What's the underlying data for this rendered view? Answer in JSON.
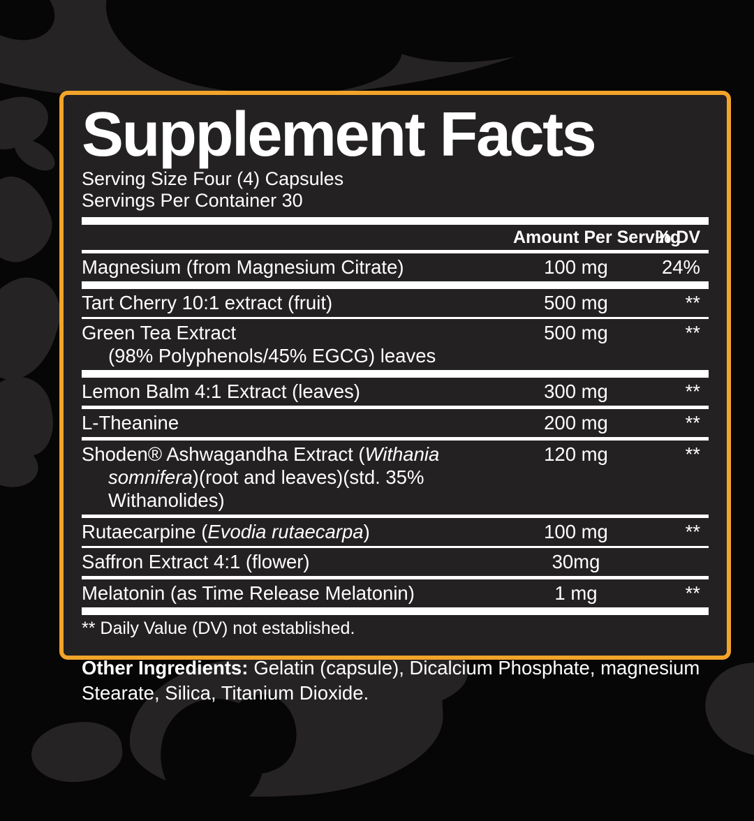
{
  "label": {
    "title": "Supplement Facts",
    "serving_size": "Serving Size Four (4) Capsules",
    "servings_per_container": "Servings Per Container 30",
    "columns": {
      "amount": "Amount Per Serving",
      "dv": "% DV"
    },
    "rows": [
      {
        "name": "Magnesium (from Magnesium Citrate)",
        "amount": "100 mg",
        "dv": "24%"
      },
      {
        "name": "Tart Cherry 10:1 extract (fruit)",
        "amount": "500 mg",
        "dv": "**"
      },
      {
        "name_line1": "Green Tea Extract",
        "name_line2": "(98% Polyphenols/45% EGCG) leaves",
        "amount": "500 mg",
        "dv": "**"
      },
      {
        "name": "Lemon Balm 4:1 Extract (leaves)",
        "amount": "300 mg",
        "dv": "**"
      },
      {
        "name": "L-Theanine",
        "amount": "200 mg",
        "dv": "**"
      },
      {
        "line1_regular": "Shoden® Ashwagandha Extract (",
        "line1_italic": "Withania",
        "line2_italic": "somnifera",
        "line2_regular": ")(root and leaves)(std. 35%",
        "line3": "Withanolides)",
        "amount": "120 mg",
        "dv": "**"
      },
      {
        "pre": "Rutaecarpine (",
        "italic": "Evodia rutaecarpa",
        "post": ")",
        "amount": "100 mg",
        "dv": "**"
      },
      {
        "name": "Saffron Extract 4:1 (flower)",
        "amount": "30mg",
        "dv": ""
      },
      {
        "name": "Melatonin (as Time Release Melatonin)",
        "amount": "1 mg",
        "dv": "**"
      }
    ],
    "footnote": "** Daily Value (DV) not established.",
    "other_ingredients": {
      "label": "Other Ingredients:",
      "text": "Gelatin (capsule), Dicalcium Phosphate, magnesium Stearate, Silica, Titanium Dioxide."
    }
  },
  "colors": {
    "border_accent": "#F2A42A",
    "panel_background": "#242122",
    "page_background": "#070606",
    "text": "#FFFFFF"
  }
}
